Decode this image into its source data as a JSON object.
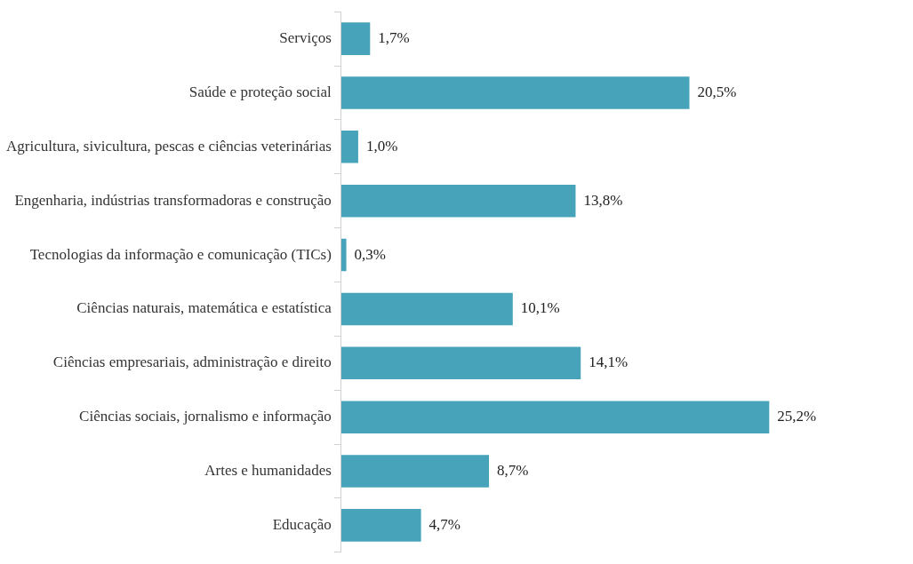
{
  "chart_data": {
    "type": "bar",
    "orientation": "horizontal",
    "categories": [
      "Serviços",
      "Saúde e proteção social",
      "Agricultura, sivicultura, pescas e ciências veterinárias",
      "Engenharia, indústrias transformadoras e construção",
      "Tecnologias da informação e comunicação (TICs)",
      "Ciências naturais, matemática e estatística",
      "Ciências empresariais, administração e direito",
      "Ciências sociais, jornalismo e informação",
      "Artes e humanidades",
      "Educação"
    ],
    "values": [
      1.7,
      20.5,
      1.0,
      13.8,
      0.3,
      10.1,
      14.1,
      25.2,
      8.7,
      4.7
    ],
    "value_labels": [
      "1,7%",
      "20,5%",
      "1,0%",
      "13,8%",
      "0,3%",
      "10,1%",
      "14,1%",
      "25,2%",
      "8,7%",
      "4,7%"
    ],
    "color": "#46a3b9"
  }
}
